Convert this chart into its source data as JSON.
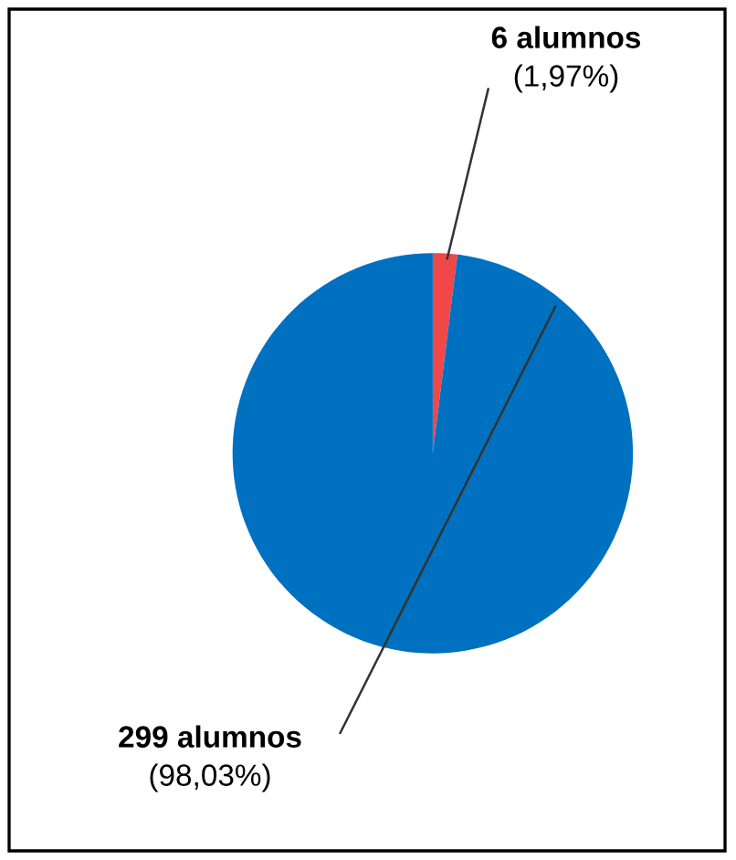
{
  "chart_data": {
    "type": "pie",
    "categories": [
      null,
      null
    ],
    "values": [
      6,
      299
    ],
    "colors": [
      "#f04848",
      "#0070c0"
    ],
    "value_labels": [
      "6 alumnos\n(1,97%)",
      "299 alumnos\n(98,03%)"
    ],
    "legend": false
  }
}
